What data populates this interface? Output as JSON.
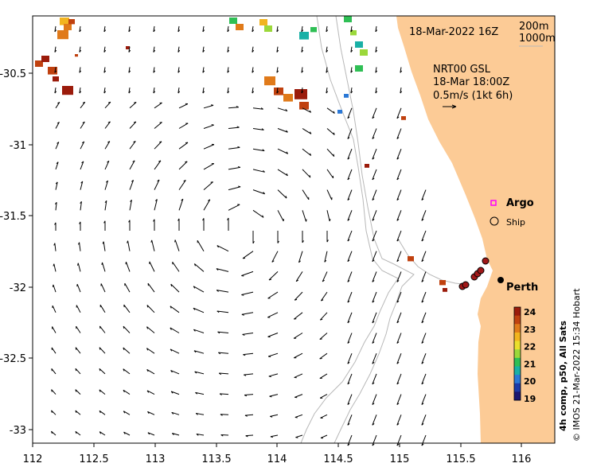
{
  "map": {
    "title": "18-Mar-2022 16Z",
    "depth_labels": [
      "200m",
      "1000m"
    ],
    "product": "NRT00 GSL",
    "product_time": "18-Mar 18:00Z",
    "current_scale": "0.5m/s (1kt 6h)",
    "legend": {
      "argo": "Argo",
      "ship": "Ship"
    },
    "place": "Perth",
    "x_ticks": [
      "112",
      "112.5",
      "113",
      "113.5",
      "114",
      "114.5",
      "115",
      "115.5",
      "116"
    ],
    "y_ticks": [
      "-30.5",
      "-31",
      "-31.5",
      "-32",
      "-32.5",
      "-33"
    ],
    "colorbar": {
      "ticks": [
        "24",
        "23",
        "22",
        "21",
        "20",
        "19"
      ],
      "label": "4h comp, p50, All Sats",
      "colors": [
        "#9b1b0b",
        "#c0410f",
        "#e07a1a",
        "#f2b41f",
        "#eadf2c",
        "#9bd83a",
        "#2fbf55",
        "#19b0a6",
        "#2a78d6",
        "#1b3aa8",
        "#1a1670"
      ]
    },
    "credit": "© IMOS 21-Mar-2022 15:34 Hobart",
    "colors": {
      "land": "#fccb96",
      "ocean": "#ffffff",
      "isobath": "#b8b8b8",
      "argo": "#ff00ff",
      "ship_fill": "#a01818"
    }
  }
}
